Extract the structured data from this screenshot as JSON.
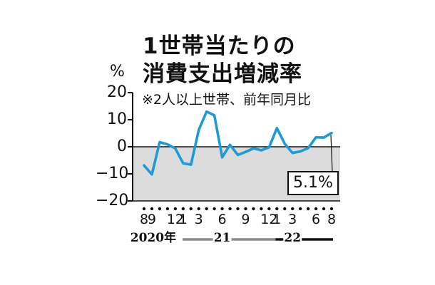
{
  "title_lines": [
    "1世帯当たりの",
    "消費支出増減率"
  ],
  "unit": "%",
  "note": "※2人以上世帯、前年同月比",
  "callout": "5.1%",
  "chart_data": {
    "type": "line",
    "title": "1世帯当たりの消費支出増減率",
    "subtitle": "※2人以上世帯、前年同月比",
    "ylabel": "%",
    "ylim": [
      -20,
      20
    ],
    "y_ticks": [
      20,
      10,
      0,
      -10,
      -20
    ],
    "x": [
      "2020-08",
      "2020-09",
      "2020-10",
      "2020-11",
      "2020-12",
      "2021-01",
      "2021-02",
      "2021-03",
      "2021-04",
      "2021-05",
      "2021-06",
      "2021-07",
      "2021-08",
      "2021-09",
      "2021-10",
      "2021-11",
      "2021-12",
      "2022-01",
      "2022-02",
      "2022-03",
      "2022-04",
      "2022-05",
      "2022-06",
      "2022-07",
      "2022-08"
    ],
    "x_tick_labels": [
      "8",
      "9",
      "",
      "",
      "12",
      "1",
      "",
      "3",
      "",
      "",
      "6",
      "",
      "",
      "9",
      "",
      "",
      "12",
      "1",
      "",
      "3",
      "",
      "",
      "6",
      "",
      "8"
    ],
    "period_labels": [
      {
        "text": "2020年",
        "at": "2020-10"
      },
      {
        "text": "21",
        "at": "2021-06"
      },
      {
        "text": "22",
        "at": "2022-03"
      }
    ],
    "series": [
      {
        "values": [
          -6.9,
          -10.2,
          1.7,
          0.9,
          -0.6,
          -6.1,
          -6.6,
          6.2,
          13.0,
          11.6,
          -3.9,
          0.7,
          -3.0,
          -1.9,
          -0.6,
          -1.3,
          -0.2,
          6.9,
          1.1,
          -2.3,
          -1.7,
          -0.5,
          3.5,
          3.4,
          5.1
        ],
        "color": "#1e9ad6"
      }
    ],
    "grid": false,
    "annotations": [
      {
        "text": "5.1%",
        "at": "2022-08"
      }
    ],
    "negative_region_shaded": true
  }
}
